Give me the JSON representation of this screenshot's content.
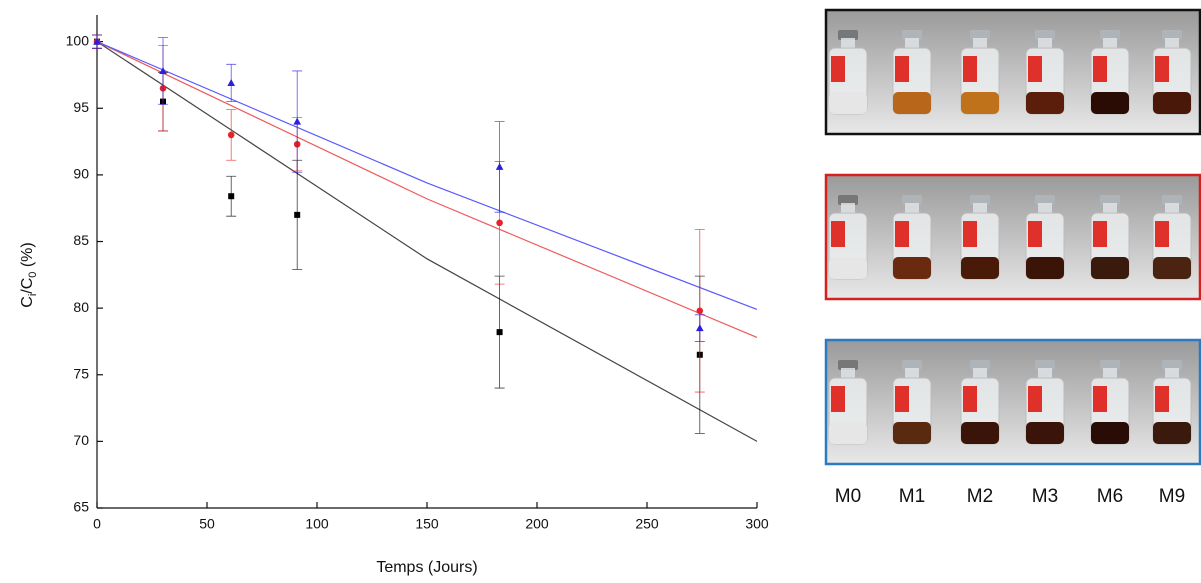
{
  "chart_data": {
    "type": "scatter",
    "x_label": "Temps (Jours)",
    "y_label_parts": [
      "C",
      "i",
      "/C",
      "0",
      " (%)"
    ],
    "xlim": [
      0,
      300
    ],
    "xticks": [
      0,
      50,
      100,
      150,
      200,
      250,
      300
    ],
    "ylim": [
      65,
      102
    ],
    "yticks": [
      65,
      70,
      75,
      80,
      85,
      90,
      95,
      100
    ],
    "x": [
      0,
      30,
      61,
      91,
      183,
      274
    ],
    "series": [
      {
        "color": "#000000",
        "marker": "square",
        "values": [
          100,
          95.5,
          88.4,
          87.0,
          78.2,
          76.5
        ],
        "errors": [
          0.5,
          2.2,
          1.5,
          4.1,
          4.2,
          5.9
        ]
      },
      {
        "color": "#e8222a",
        "marker": "circle",
        "values": [
          100,
          96.5,
          93.0,
          92.3,
          86.4,
          79.8
        ],
        "errors": [
          0.5,
          3.2,
          1.9,
          2.0,
          4.6,
          6.1
        ]
      },
      {
        "color": "#2a1ee0",
        "marker": "triangle",
        "values": [
          100,
          97.8,
          96.9,
          94.0,
          90.6,
          78.5
        ],
        "errors": [
          0.5,
          2.5,
          1.4,
          3.8,
          3.4,
          1.0
        ]
      }
    ],
    "fits": [
      {
        "color": "#444444",
        "x": [
          0,
          150,
          300
        ],
        "values": [
          100,
          83.7,
          70.0
        ]
      },
      {
        "color": "#ef5a5a",
        "x": [
          0,
          150,
          300
        ],
        "values": [
          100,
          88.2,
          77.8
        ]
      },
      {
        "color": "#5a5aff",
        "x": [
          0,
          150,
          300
        ],
        "values": [
          100,
          89.4,
          79.9
        ]
      }
    ]
  },
  "photos": {
    "labels": [
      "M0",
      "M1",
      "M2",
      "M3",
      "M6",
      "M9"
    ]
  }
}
